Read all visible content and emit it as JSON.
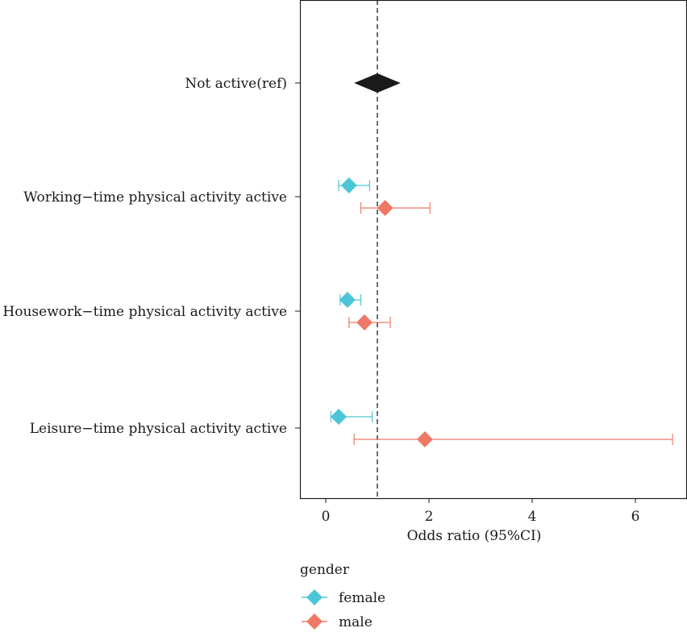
{
  "chart_data": {
    "type": "forest",
    "xlabel": "Odds ratio (95%CI)",
    "xlim": [
      -0.5,
      7.0
    ],
    "x_ticks": [
      0,
      2,
      4,
      6
    ],
    "reference_line": 1,
    "reference": {
      "category": "Not active(ref)",
      "estimate": 1,
      "lower": 0.55,
      "upper": 1.45,
      "color": "#1a1a1a"
    },
    "categories": [
      "Not active(ref)",
      "Working−time physical activity active",
      "Housework−time physical activity active",
      "Leisure−time physical activity active"
    ],
    "series": [
      {
        "name": "female",
        "color": "#4ec5d6",
        "points": [
          {
            "category": "Working−time physical activity active",
            "estimate": 0.45,
            "lower": 0.25,
            "upper": 0.85
          },
          {
            "category": "Housework−time physical activity active",
            "estimate": 0.42,
            "lower": 0.28,
            "upper": 0.68
          },
          {
            "category": "Leisure−time physical activity active",
            "estimate": 0.25,
            "lower": 0.1,
            "upper": 0.9
          }
        ]
      },
      {
        "name": "male",
        "color": "#f07866",
        "points": [
          {
            "category": "Working−time physical activity active",
            "estimate": 1.15,
            "lower": 0.68,
            "upper": 2.02
          },
          {
            "category": "Housework−time physical activity active",
            "estimate": 0.75,
            "lower": 0.45,
            "upper": 1.25
          },
          {
            "category": "Leisure−time physical activity active",
            "estimate": 1.92,
            "lower": 0.55,
            "upper": 6.72
          }
        ]
      }
    ],
    "legend": {
      "title": "gender",
      "placement": "bottom-left"
    }
  }
}
